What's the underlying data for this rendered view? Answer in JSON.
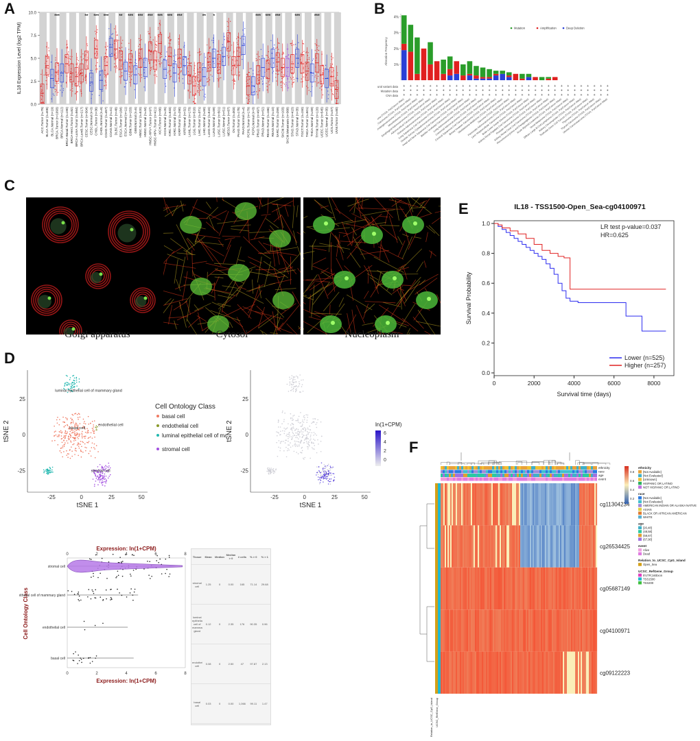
{
  "labels": {
    "A": "A",
    "B": "B",
    "C": "C",
    "D": "D",
    "E": "E",
    "F": "F"
  },
  "colors": {
    "red": "#e02020",
    "blue": "#2a3fd6",
    "green": "#2a9d2a",
    "purple": "#a24fe0",
    "teal": "#22b8b0",
    "salmon": "#f07a62",
    "olive": "#8a9a2a"
  },
  "panelA": {
    "ylabel": "IL18 Expression Level (log2 TPM)",
    "yticks": [
      "0.0",
      "2.5",
      "5.0",
      "7.5",
      "10.0"
    ],
    "sig": [
      "***",
      "**",
      "***",
      "***",
      "**",
      "***",
      "***",
      "***",
      "***",
      "***",
      "***",
      "**",
      "*",
      "***",
      "***",
      "***",
      "***",
      "***"
    ],
    "categories": [
      "ACC.Tumor (n=79)",
      "BLCA.Tumor (n=408)",
      "BLCA.Normal (n=19)",
      "BRCA.Tumor (n=1093)",
      "BRCA.Normal (n=112)",
      "BRCA-Basal.Tumor (n=190)",
      "BRCA-Her2.Tumor (n=82)",
      "BRCA-LumA.Tumor (n=564)",
      "BRCA-LumB.Tumor (n=217)",
      "CESC.Tumor (n=304)",
      "CESC.Normal (n=3)",
      "CHOL.Tumor (n=36)",
      "CHOL.Normal (n=9)",
      "COAD.Tumor (n=457)",
      "COAD.Normal (n=41)",
      "DLBC.Tumor (n=48)",
      "ESCA.Tumor (n=184)",
      "ESCA.Normal (n=11)",
      "GBM.Tumor (n=153)",
      "GBM.Normal (n=5)",
      "HNSC.Tumor (n=520)",
      "HNSC.Normal (n=44)",
      "HNSC-HPV+.Tumor (n=97)",
      "HNSC-HPV-.Tumor (n=421)",
      "KICH.Tumor (n=66)",
      "KICH.Normal (n=25)",
      "KIRC.Tumor (n=533)",
      "KIRC.Normal (n=72)",
      "KIRP.Tumor (n=290)",
      "KIRP.Normal (n=32)",
      "LAML.Tumor (n=173)",
      "LGG.Tumor (n=516)",
      "LIHC.Tumor (n=371)",
      "LIHC.Normal (n=50)",
      "LUAD.Tumor (n=515)",
      "LUAD.Normal (n=59)",
      "LUSC.Tumor (n=501)",
      "LUSC.Normal (n=51)",
      "MESO.Tumor (n=87)",
      "OV.Tumor (n=303)",
      "PAAD.Tumor (n=178)",
      "PAAD.Normal (n=4)",
      "PCPG.Tumor (n=179)",
      "PCPG.Normal (n=3)",
      "PRAD.Tumor (n=497)",
      "PRAD.Normal (n=52)",
      "READ.Tumor (n=166)",
      "READ.Normal (n=10)",
      "SARC.Tumor (n=259)",
      "SKCM.Tumor (n=103)",
      "SKCM.Metastasis (n=368)",
      "STAD.Tumor (n=415)",
      "STAD.Normal (n=35)",
      "TGCT.Tumor (n=150)",
      "THCA.Tumor (n=501)",
      "THCA.Normal (n=59)",
      "THYM.Tumor (n=120)",
      "UCEC.Tumor (n=545)",
      "UCEC.Normal (n=35)",
      "UCS.Tumor (n=57)",
      "UVM.Tumor (n=80)"
    ],
    "medians": [
      1.2,
      4.2,
      2.8,
      3.5,
      3.4,
      4.4,
      3.4,
      3.0,
      3.4,
      4.8,
      2.4,
      6.0,
      2.6,
      4.2,
      6.2,
      6.0,
      4.8,
      3.6,
      4.5,
      3.2,
      5.0,
      4.0,
      5.8,
      4.8,
      6.6,
      3.8,
      5.2,
      3.4,
      5.0,
      4.2,
      3.2,
      2.0,
      3.5,
      3.0,
      4.6,
      5.0,
      4.4,
      5.2,
      6.8,
      4.2,
      5.2,
      6.4,
      2.0,
      2.0,
      3.2,
      4.0,
      3.8,
      5.0,
      4.6,
      4.0,
      4.0,
      4.4,
      5.0,
      4.4,
      3.6,
      3.4,
      4.5,
      3.2,
      2.8,
      3.0,
      1.6
    ]
  },
  "panelB": {
    "yticks": [
      "4%",
      "3%",
      "2%",
      "1%"
    ],
    "ylabel": "Alteration Frequency",
    "legend": [
      "Mutation",
      "Amplification",
      "Deep Deletion"
    ],
    "rowlabels": [
      "Structural variant data",
      "Mutation data",
      "CNA data"
    ],
    "studies": [
      "Skin Cutaneous Melanoma (TCGA, PanCancer Atlas)",
      "Uterine Corpus Endometrial Carcinoma (TCGA, PanCancer Atlas)",
      "Cholangiocarcinoma (TCGA, PanCancer Atlas)",
      "Mesothelioma (TCGA, PanCancer Atlas)",
      "Esophageal Adenocarcinoma (TCGA, PanCancer Atlas)",
      "Adrenocortical Carcinoma (TCGA, PanCancer Atlas)",
      "Stomach Adenocarcinoma (TCGA, PanCancer Atlas)",
      "Lung Squamous Cell Carcinoma (TCGA, PanCancer Atlas)",
      "Ovarian Serous Cystadenocarcinoma (TCGA, PanCancer Atlas)",
      "Head and Neck Squamous Cell Carcinoma (TCGA, PanCancer Atlas)",
      "Bladder Urothelial Carcinoma (TCGA, PanCancer Atlas)",
      "Lung Adenocarcinoma (TCGA, PanCancer Atlas)",
      "Colorectal Adenocarcinoma (TCGA, PanCancer Atlas)",
      "Cervical Squamous Cell Carcinoma (TCGA, PanCancer Atlas)",
      "Breast Invasive Carcinoma (TCGA, PanCancer Atlas)",
      "Glioblastoma Multiforme (TCGA, PanCancer Atlas)",
      "Sarcoma (TCGA, PanCancer Atlas)",
      "Pancreatic Adenocarcinoma (TCGA, PanCancer Atlas)",
      "Liver Hepatocellular Carcinoma (TCGA, PanCancer Atlas)",
      "Brain Lower Grade Glioma (TCGA, PanCancer Atlas)",
      "Kidney Renal Papillary Cell Carcinoma (TCGA, PanCancer Atlas)",
      "Prostate Adenocarcinoma (TCGA, PanCancer Atlas)",
      "Kidney Renal Clear Cell Carcinoma (TCGA, PanCancer Atlas)",
      "Pheochromocytoma and Paraganglioma (TCGA, PanCancer Atlas)",
      "Acute Myeloid Leukemia (TCGA, PanCancer Atlas)",
      "Uveal Melanoma (TCGA, PanCancer Atlas)",
      "Diffuse Large B-Cell Lymphoma (TCGA, PanCancer Atlas)",
      "Kidney Chromophobe (TCGA, PanCancer Atlas)",
      "Testicular Germ Cell Tumors (TCGA, PanCancer Atlas)",
      "Thymoma (TCGA, PanCancer Atlas)",
      "Thyroid Carcinoma (TCGA, PanCancer Atlas)",
      "Uterine Carcinosarcoma (TCGA, PanCancer Atlas)"
    ],
    "mutation": [
      1.8,
      1.7,
      2.3,
      0,
      1.4,
      0,
      0.9,
      0.8,
      0,
      0.7,
      0.8,
      0.6,
      0.6,
      0.5,
      0.2,
      0.2,
      0.2,
      0,
      0.3,
      0.2,
      0,
      0.2,
      0.1,
      0,
      0,
      0,
      0,
      0,
      0,
      0,
      0,
      0
    ],
    "amplification": [
      0.4,
      1.8,
      0.4,
      2.0,
      1.0,
      1.2,
      0.4,
      0.4,
      0.8,
      0.3,
      0.1,
      0.2,
      0.1,
      0.1,
      0.1,
      0,
      0.1,
      0.4,
      0.1,
      0,
      0.2,
      0,
      0.1,
      0.2,
      0,
      0,
      0,
      0,
      0,
      0,
      0,
      0
    ],
    "deletion": [
      1.9,
      0,
      0,
      0,
      0,
      0,
      0,
      0.3,
      0.4,
      0,
      0.3,
      0.1,
      0.1,
      0.1,
      0.3,
      0.4,
      0.2,
      0,
      0,
      0.2,
      0,
      0,
      0,
      0,
      0,
      0,
      0,
      0,
      0,
      0,
      0,
      0
    ]
  },
  "panelC": {
    "captions": [
      "Golgi apparatus",
      "Cytosol",
      "Nucleoplasm"
    ]
  },
  "panelD": {
    "xlabel": "tSNE 1",
    "ylabel": "tSNE 2",
    "xticks": [
      "-25",
      "0",
      "25",
      "50"
    ],
    "yticks": [
      "25",
      "0",
      "-25"
    ],
    "legend_title": "Cell Ontology Class",
    "legend": [
      "basal cell",
      "endothelial cell",
      "luminal epithelial cell of mammary gland",
      "stromal cell"
    ],
    "cluster_labels": [
      "luminal epithelial cell of mammary gland",
      "basal cell",
      "endothelial cell",
      "stromal cell"
    ],
    "scale_title": "ln(1+CPM)",
    "scale_ticks": [
      "6",
      "4",
      "2",
      "0"
    ],
    "violin_title": "Expression: ln(1+CPM)",
    "violin_ylabel": "Cell Ontology Class",
    "violin_ticks": [
      "0",
      "2",
      "4",
      "6",
      "8"
    ],
    "violin_categories": [
      "stromal cell",
      "luminal epithelial cell of mammary gland",
      "endothelial cell",
      "basal cell"
    ],
    "table_header": [
      "Tissue",
      "Mean",
      "Median",
      "Median > 0",
      "# cells",
      "% > 0",
      "% > 1"
    ],
    "table_rows": [
      [
        "stromal cell",
        "1.25",
        "0",
        "0.00",
        "165",
        "71.14",
        "29.68"
      ],
      [
        "luminal epithelial cell of mammary gland",
        "0.12",
        "0",
        "2.35",
        "176",
        "90.35",
        "0.96"
      ],
      [
        "endothelial cell",
        "0.08",
        "0",
        "2.50",
        "47",
        "97.87",
        "2.13"
      ],
      [
        "basal cell",
        "0.03",
        "0",
        "0.00",
        "1,066",
        "99.11",
        "1.47"
      ]
    ]
  },
  "panelE": {
    "title": "IL18 - TSS1500-Open_Sea-cg04100971",
    "pvalue": "LR test p-value=0.037",
    "hr": "HR=0.625",
    "xlabel": "Survival time (days)",
    "ylabel": "Survival Probability",
    "xticks": [
      "0",
      "2000",
      "4000",
      "6000",
      "8000"
    ],
    "yticks": [
      "1.0",
      "0.8",
      "0.6",
      "0.4",
      "0.2",
      "0.0"
    ],
    "legend": [
      "Lower (n=525)",
      "Higher (n=257)"
    ]
  },
  "panelF": {
    "topbars": [
      "ethnicity",
      "race",
      "age",
      "event"
    ],
    "rows": [
      "cg11304234",
      "cg26534425",
      "cg05687149",
      "cg04100971",
      "cg09122223"
    ],
    "left_label": "Relation_to_UCSC_CpG_Island",
    "left_label2": "UCSC_RefGene_Group",
    "scale_ticks": [
      "0.8",
      "0.6",
      "0.4",
      "0.2"
    ],
    "legend": {
      "ethnicity": {
        "title": "ethnicity",
        "items": [
          "[Not Available]",
          "[Not Evaluated]",
          "[Unknown]",
          "HISPANIC OR LATINO",
          "NOT HISPANIC OR LATINO"
        ]
      },
      "race": {
        "title": "race",
        "items": [
          "[Not Available]",
          "[Not Evaluated]",
          "AMERICAN INDIAN OR ALASKA NATIVE",
          "ASIAN",
          "BLACK OR AFRICAN AMERICAN",
          "WHITE"
        ]
      },
      "age": {
        "title": "age",
        "items": [
          "[26,48]",
          "(48,58]",
          "(58,67]",
          "(67,90]"
        ]
      },
      "event": {
        "title": "event",
        "items": [
          "Alive",
          "Dead"
        ]
      },
      "relation": {
        "title": "Relation_to_UCSC_CpG_Island",
        "items": [
          "Open_Sea"
        ]
      },
      "group": {
        "title": "UCSC_RefGene_Group",
        "items": [
          "5'UTR;1stExon",
          "TSS1500",
          "TSS200"
        ]
      }
    }
  },
  "chart_data": [
    {
      "type": "box",
      "title": "",
      "xlabel": "",
      "ylabel": "IL18 Expression Level (log2 TPM)",
      "ylim": [
        0,
        10
      ]
    },
    {
      "type": "bar",
      "title": "",
      "ylabel": "Alteration Frequency",
      "ylim": [
        0,
        4.2
      ],
      "legend": [
        "Mutation",
        "Amplification",
        "Deep Deletion"
      ]
    },
    {
      "type": "line",
      "title": "IL18 - TSS1500-Open_Sea-cg04100971",
      "xlabel": "Survival time (days)",
      "ylabel": "Survival Probability",
      "xlim": [
        0,
        9000
      ],
      "ylim": [
        0,
        1
      ],
      "series": [
        {
          "name": "Lower (n=525)",
          "x": [
            0,
            200,
            400,
            600,
            800,
            1000,
            1200,
            1400,
            1600,
            1800,
            2000,
            2200,
            2400,
            2600,
            2800,
            3000,
            3200,
            3400,
            3600,
            3800,
            4200,
            4800,
            5400,
            6000,
            6600,
            7000,
            7400,
            7600,
            8600
          ],
          "y": [
            1.0,
            0.98,
            0.96,
            0.94,
            0.92,
            0.9,
            0.88,
            0.86,
            0.84,
            0.82,
            0.8,
            0.78,
            0.76,
            0.73,
            0.7,
            0.66,
            0.6,
            0.55,
            0.5,
            0.48,
            0.47,
            0.47,
            0.47,
            0.47,
            0.38,
            0.38,
            0.28,
            0.28,
            0.28
          ]
        },
        {
          "name": "Higher (n=257)",
          "x": [
            0,
            200,
            400,
            800,
            1200,
            1600,
            2000,
            2400,
            2800,
            3200,
            3500,
            3800,
            4200,
            5000,
            6000,
            7000,
            8000,
            8600
          ],
          "y": [
            1.0,
            0.99,
            0.97,
            0.95,
            0.93,
            0.9,
            0.86,
            0.82,
            0.8,
            0.78,
            0.77,
            0.56,
            0.56,
            0.56,
            0.56,
            0.56,
            0.56,
            0.56
          ]
        }
      ]
    }
  ]
}
